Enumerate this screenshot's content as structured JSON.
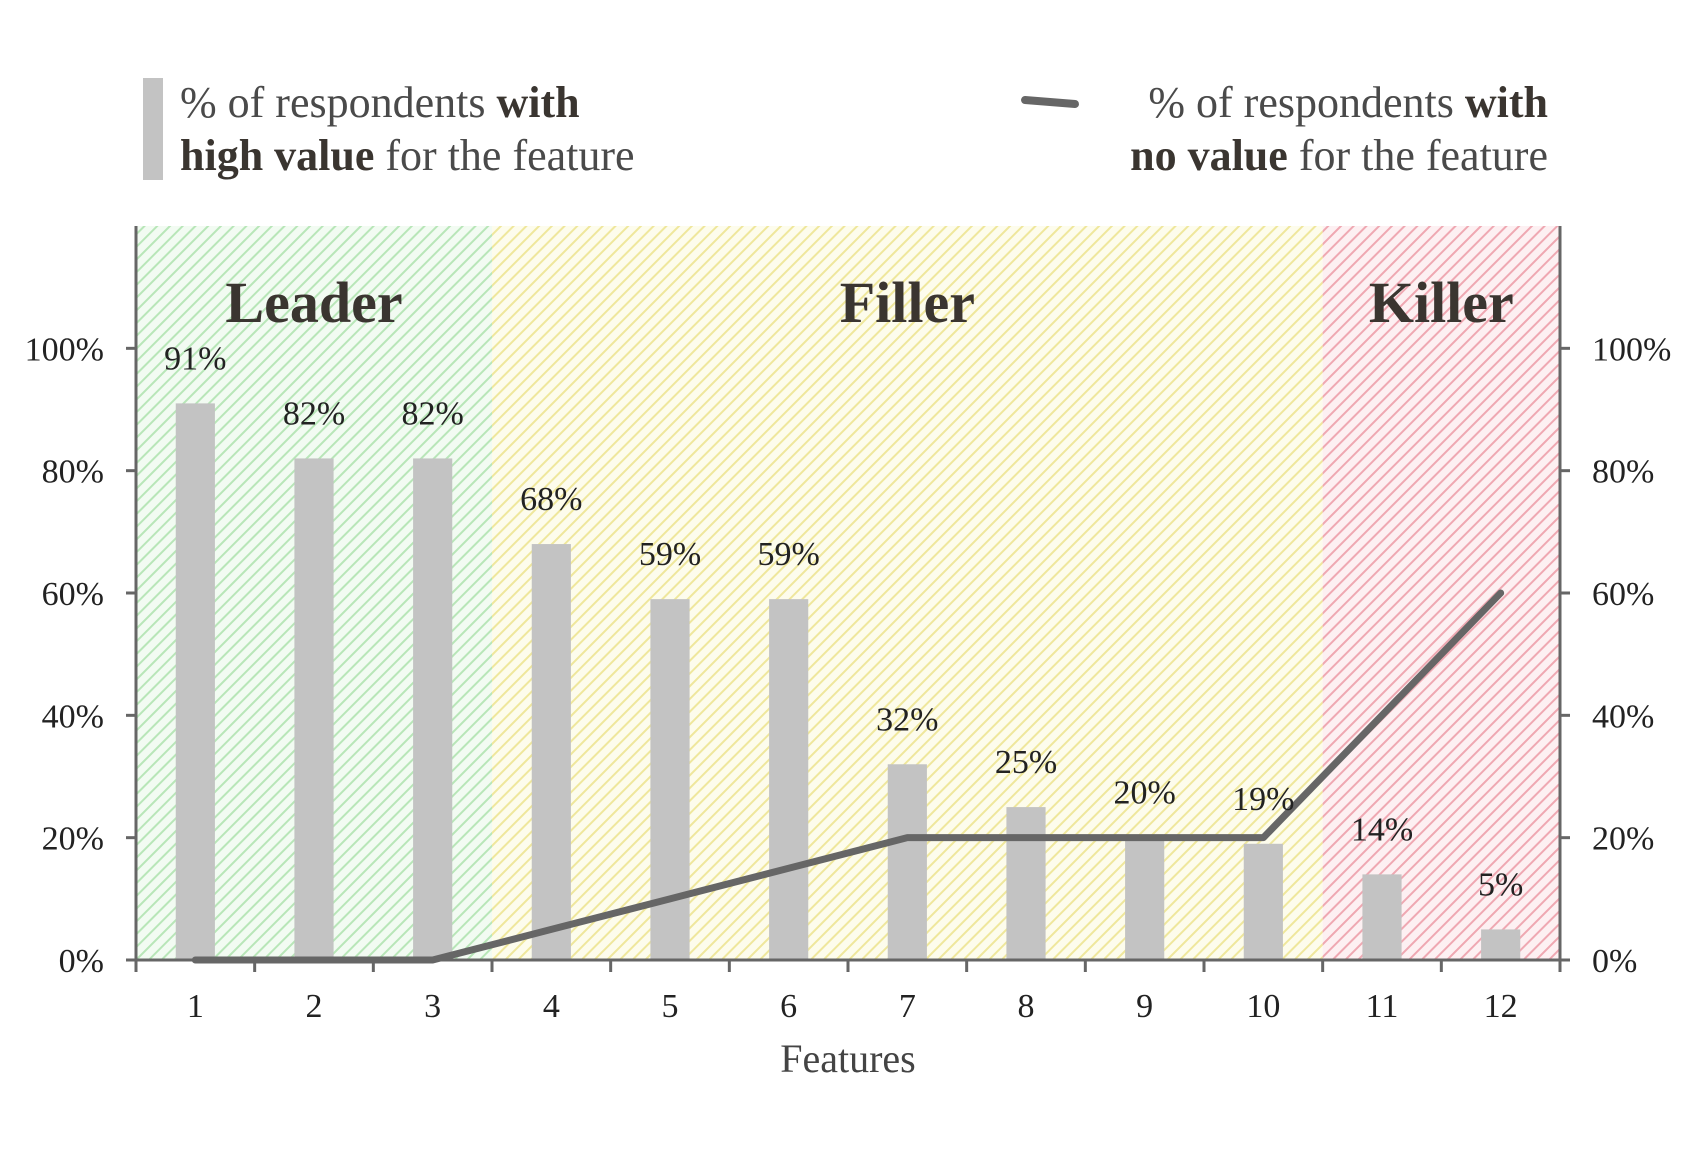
{
  "legend": {
    "bars": {
      "line1_pre": "% of respondents ",
      "line1_bold": "with",
      "line2_bold": "high value",
      "line2_post": " for the feature"
    },
    "line": {
      "line1_pre": "% of respondents ",
      "line1_bold": "with",
      "line2_bold": "no value",
      "line2_post": " for the feature"
    }
  },
  "chart_data": {
    "type": "bar",
    "categories": [
      "1",
      "2",
      "3",
      "4",
      "5",
      "6",
      "7",
      "8",
      "9",
      "10",
      "11",
      "12"
    ],
    "xlabel": "Features",
    "ylabel": "",
    "ylim": [
      0,
      1.2
    ],
    "y_ticks": [
      0,
      0.2,
      0.4,
      0.6,
      0.8,
      1.0
    ],
    "y_tick_labels": [
      "0%",
      "20%",
      "40%",
      "60%",
      "80%",
      "100%"
    ],
    "y2_tick_labels": [
      "0%",
      "20%",
      "40%",
      "60%",
      "80%",
      "100%"
    ],
    "series": [
      {
        "kind": "bar",
        "values": [
          0.91,
          0.82,
          0.82,
          0.68,
          0.59,
          0.59,
          0.32,
          0.25,
          0.2,
          0.19,
          0.14,
          0.05
        ],
        "labels": [
          "91%",
          "82%",
          "82%",
          "68%",
          "59%",
          "59%",
          "32%",
          "25%",
          "20%",
          "19%",
          "14%",
          "5%"
        ],
        "color": "#c3c3c3"
      },
      {
        "kind": "line",
        "values": [
          0,
          0,
          0,
          0.05,
          0.1,
          0.15,
          0.2,
          0.2,
          0.2,
          0.2,
          0.4,
          0.6
        ],
        "color": "#666666"
      }
    ],
    "zones": [
      {
        "label": "Leader",
        "from": 1,
        "to": 3,
        "color": "#c8ecc8"
      },
      {
        "label": "Filler",
        "from": 4,
        "to": 10,
        "color": "#f4efb0"
      },
      {
        "label": "Killer",
        "from": 11,
        "to": 12,
        "color": "#f2b4bc"
      }
    ],
    "grid": false,
    "legend_position": "top"
  }
}
